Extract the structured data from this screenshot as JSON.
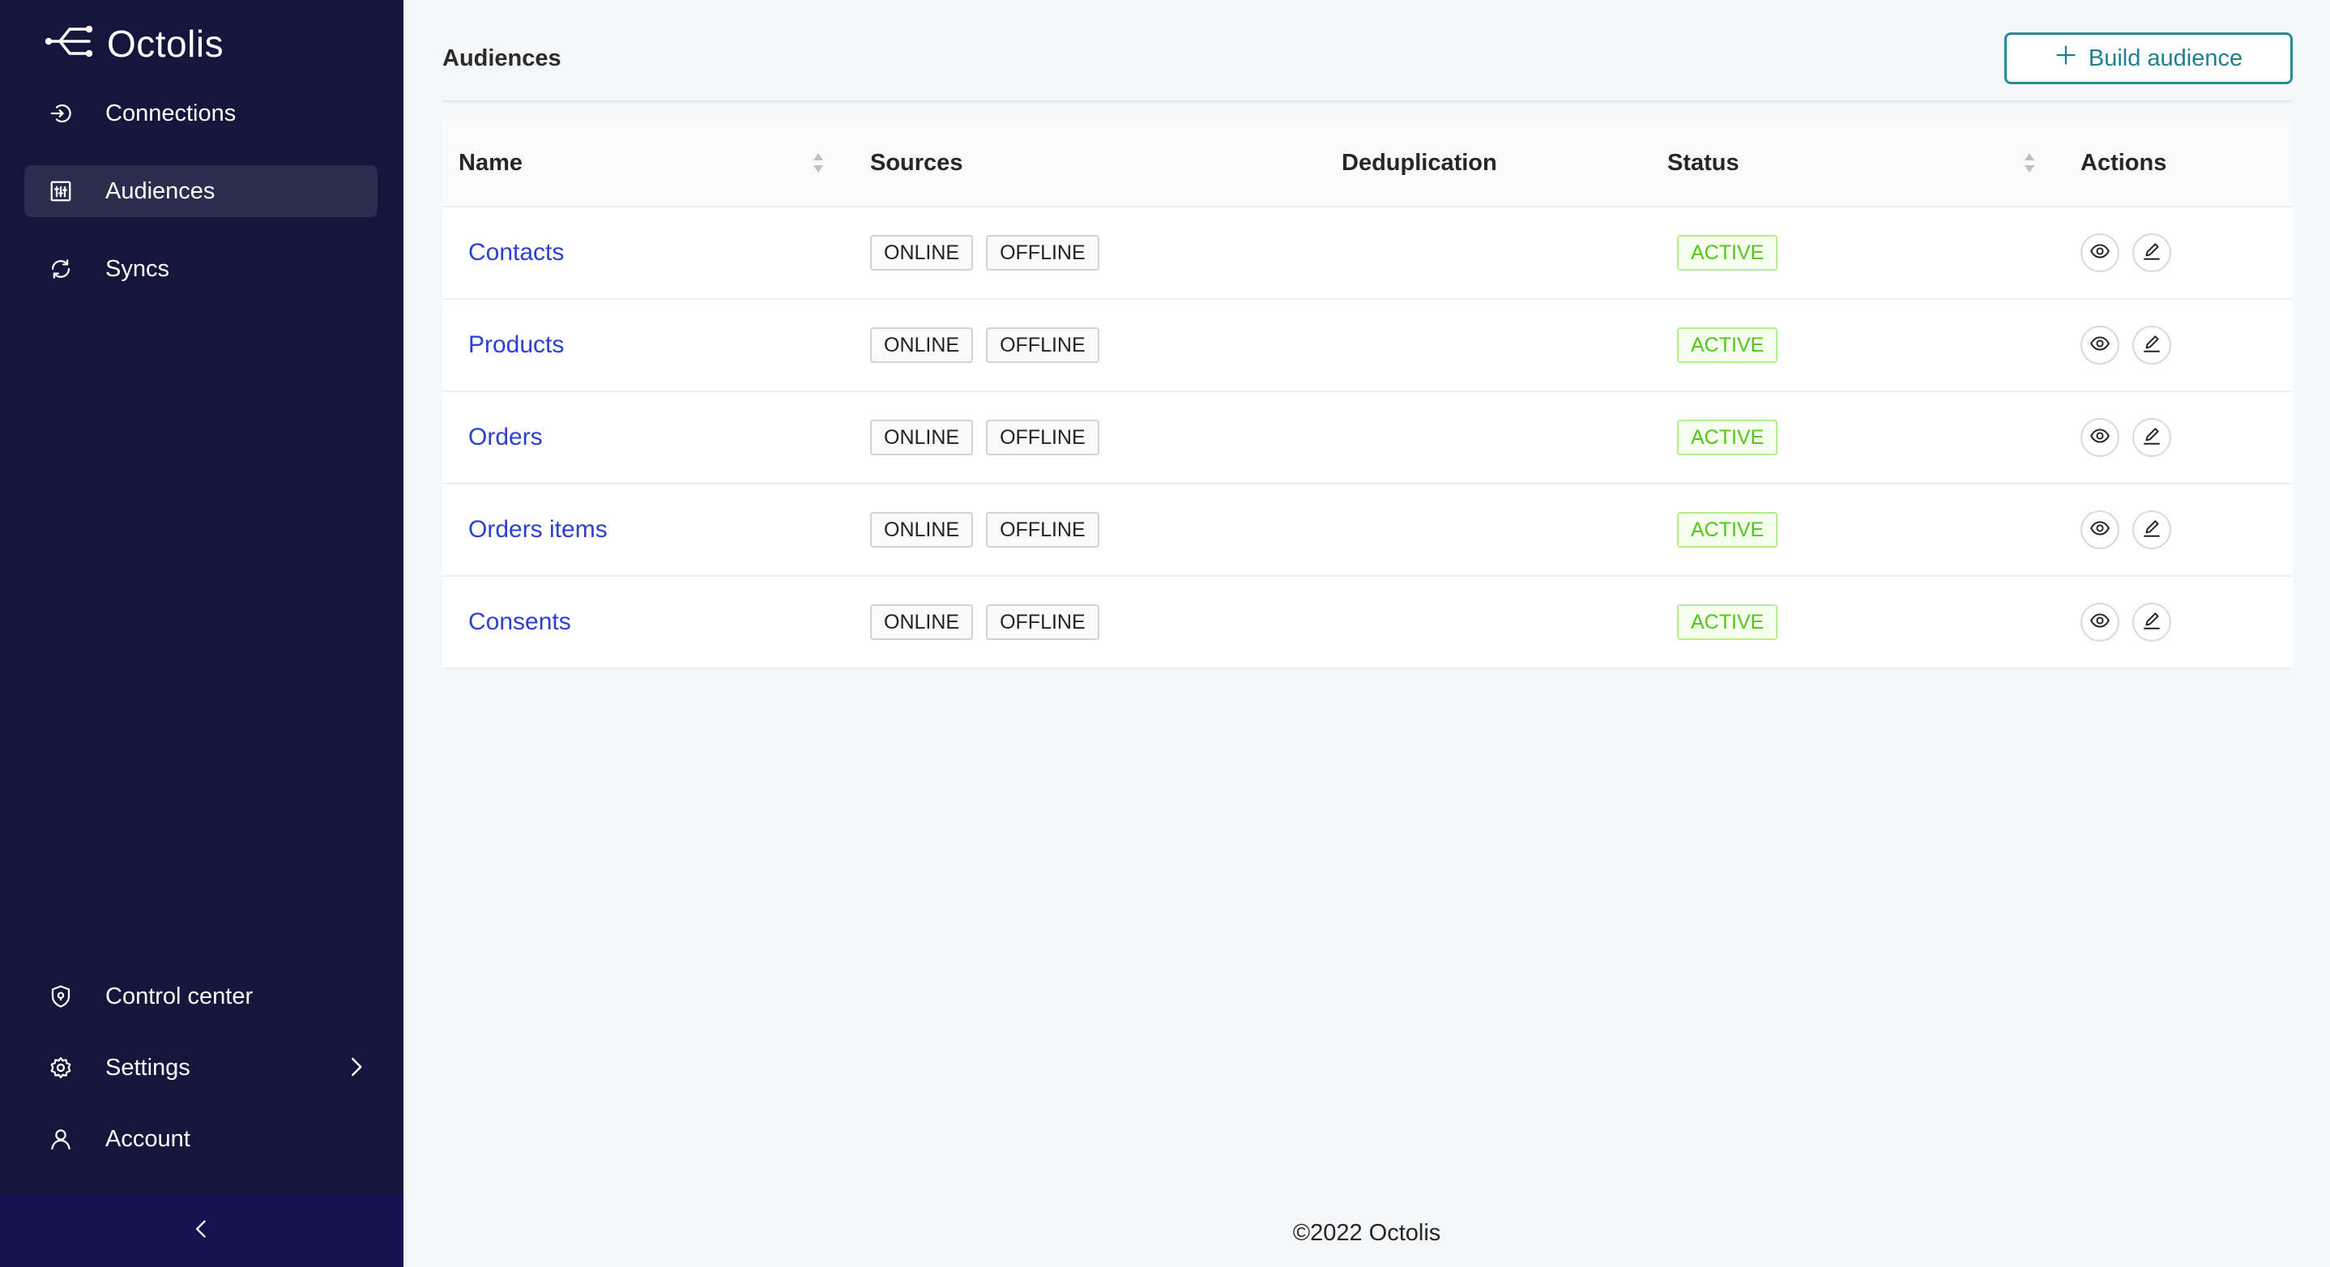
{
  "app": {
    "name": "Octolis"
  },
  "sidebar": {
    "items": [
      {
        "label": "Connections",
        "icon": "login-icon"
      },
      {
        "label": "Audiences",
        "icon": "audience-icon",
        "active": true
      },
      {
        "label": "Syncs",
        "icon": "sync-icon"
      }
    ],
    "bottom_items": [
      {
        "label": "Control center",
        "icon": "shield-icon"
      },
      {
        "label": "Settings",
        "icon": "gear-icon"
      },
      {
        "label": "Account",
        "icon": "user-icon"
      }
    ],
    "collapse_icon": "chevron-left-icon"
  },
  "page": {
    "title": "Audiences",
    "build_button": "Build audience"
  },
  "table": {
    "columns": [
      "Name",
      "Sources",
      "Deduplication",
      "Status",
      "Actions"
    ],
    "rows": [
      {
        "name": "Contacts",
        "sources": [
          "ONLINE",
          "OFFLINE"
        ],
        "deduplication": "",
        "status": "ACTIVE"
      },
      {
        "name": "Products",
        "sources": [
          "ONLINE",
          "OFFLINE"
        ],
        "deduplication": "",
        "status": "ACTIVE"
      },
      {
        "name": "Orders",
        "sources": [
          "ONLINE",
          "OFFLINE"
        ],
        "deduplication": "",
        "status": "ACTIVE"
      },
      {
        "name": "Orders items",
        "sources": [
          "ONLINE",
          "OFFLINE"
        ],
        "deduplication": "",
        "status": "ACTIVE"
      },
      {
        "name": "Consents",
        "sources": [
          "ONLINE",
          "OFFLINE"
        ],
        "deduplication": "",
        "status": "ACTIVE"
      }
    ]
  },
  "footer": {
    "text": "©2022 Octolis"
  },
  "colors": {
    "sidebar_bg": "#16163d",
    "accent": "#2a8a99",
    "link": "#2b3fd6",
    "status_active": "#52c41a"
  }
}
